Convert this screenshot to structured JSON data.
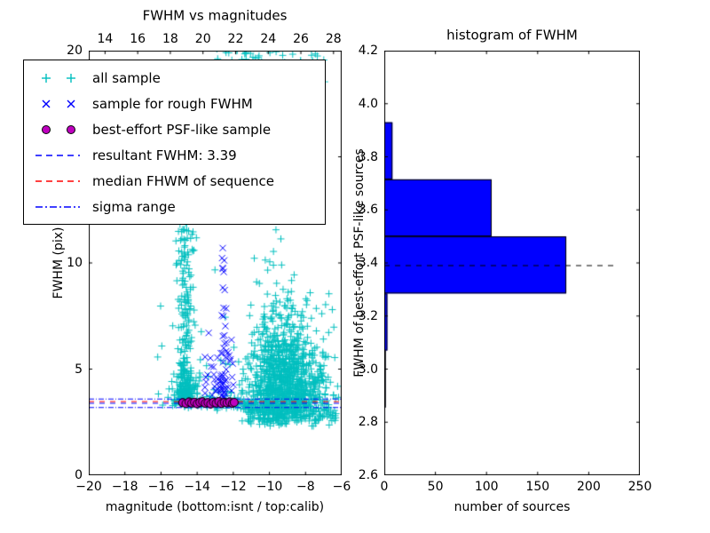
{
  "figure": {
    "background": "#ffffff"
  },
  "chart_data": [
    {
      "type": "scatter",
      "title": "FWHM vs magnitudes",
      "xlabel": "magnitude (bottom:isnt / top:calib)",
      "ylabel": "FWHM (pix)",
      "xlim": [
        -20,
        -6
      ],
      "ylim": [
        0,
        20
      ],
      "top_axis_xlim": [
        13,
        28.5
      ],
      "xtick_values_bottom": [
        -20,
        -18,
        -16,
        -14,
        -12,
        -10,
        -8,
        -6
      ],
      "xtick_labels_bottom": [
        "−20",
        "−18",
        "−16",
        "−14",
        "−12",
        "−10",
        "−8",
        "−6"
      ],
      "xtick_values_top": [
        14,
        16,
        18,
        20,
        22,
        24,
        26,
        28
      ],
      "xtick_labels_top": [
        "14",
        "16",
        "18",
        "20",
        "22",
        "24",
        "26",
        "28"
      ],
      "ytick_values": [
        0,
        5,
        10,
        15,
        20
      ],
      "ytick_labels": [
        "0",
        "5",
        "10",
        "15",
        "20"
      ],
      "legend": [
        {
          "label": "all sample",
          "marker": "plus",
          "color": "#00bfbf"
        },
        {
          "label": "sample for rough FWHM",
          "marker": "x",
          "color": "#0000ff"
        },
        {
          "label": "best-effort PSF-like sample",
          "marker": "circle",
          "color": "#bf00bf"
        },
        {
          "label": "resultant FWHM: 3.39",
          "marker": "dashed-line",
          "color": "#0000ff"
        },
        {
          "label": "median FHWM of sequence",
          "marker": "dashed-line",
          "color": "#ff0000"
        },
        {
          "label": "sigma range",
          "marker": "dashdot-line",
          "color": "#0000ff"
        }
      ],
      "hlines": [
        {
          "name": "sigma range upper",
          "y": 3.59,
          "style": "dashdot",
          "color": "#0000ff"
        },
        {
          "name": "median FHWM of sequence",
          "y": 3.47,
          "style": "dashed",
          "color": "#ff0000"
        },
        {
          "name": "resultant FWHM",
          "y": 3.39,
          "style": "dashed",
          "color": "#0000ff"
        },
        {
          "name": "sigma range lower",
          "y": 3.19,
          "style": "dashdot",
          "color": "#0000ff"
        }
      ],
      "seed": 42,
      "series": [
        {
          "name": "all sample",
          "marker": "plus",
          "color": "#00bfbf",
          "clusters": [
            {
              "n": 1050,
              "x": {
                "dist": "gauss",
                "mu": -9.2,
                "sd": 1.05,
                "min": -11.7,
                "max": -6.05
              },
              "y": {
                "dist": "lognorm",
                "mu": 1.48,
                "sd": 0.3,
                "min": 2.4,
                "max": 12.5
              }
            },
            {
              "n": 220,
              "x": {
                "dist": "gauss",
                "mu": -14.65,
                "sd": 0.22,
                "min": -15.3,
                "max": -14.0
              },
              "y": {
                "dist": "pow",
                "min": 3.35,
                "range": 8.6,
                "exp": 1.8
              }
            },
            {
              "n": 110,
              "x": {
                "dist": "gauss",
                "mu": -14.6,
                "sd": 0.33,
                "min": -15.5,
                "max": -13.8
              },
              "y": {
                "dist": "gauss",
                "mu": 4.0,
                "sd": 0.5,
                "min": 3.2,
                "max": 6.0
              }
            },
            {
              "n": 120,
              "x": {
                "dist": "uniform",
                "min": -13.0,
                "max": -6.8
              },
              "y": {
                "dist": "uniform",
                "min": 18.3,
                "max": 20.6
              }
            },
            {
              "n": 60,
              "x": {
                "dist": "uniform",
                "min": -12.5,
                "max": -7.0
              },
              "y": {
                "dist": "uniform",
                "min": 12.0,
                "max": 18.3
              }
            },
            {
              "n": 200,
              "x": {
                "dist": "uniform",
                "min": -11.4,
                "max": -6.3
              },
              "y": {
                "dist": "gauss",
                "mu": 3.05,
                "sd": 0.35,
                "min": 2.3,
                "max": 3.8
              }
            },
            {
              "n": 90,
              "x": {
                "dist": "uniform",
                "min": -15.4,
                "max": -11.5
              },
              "y": {
                "dist": "gauss",
                "mu": 3.45,
                "sd": 0.22,
                "min": 3.0,
                "max": 4.2
              }
            },
            {
              "n": 70,
              "x": {
                "dist": "uniform",
                "min": -16.3,
                "max": -6.2
              },
              "y": {
                "dist": "lognorm",
                "mu": 1.8,
                "sd": 0.45,
                "min": 3.0,
                "max": 16.0
              }
            }
          ]
        },
        {
          "name": "sample for rough FWHM",
          "marker": "x",
          "color": "#0000ff",
          "clusters": [
            {
              "n": 50,
              "x": {
                "dist": "gauss",
                "mu": -12.55,
                "sd": 0.1,
                "min": -12.9,
                "max": -12.2
              },
              "y": {
                "dist": "pow",
                "min": 3.4,
                "range": 8.4,
                "exp": 2.0
              }
            },
            {
              "n": 40,
              "x": {
                "dist": "uniform",
                "min": -13.6,
                "max": -11.9
              },
              "y": {
                "dist": "lognorm",
                "mu": 1.55,
                "sd": 0.25,
                "min": 3.3,
                "max": 7.5
              }
            }
          ]
        },
        {
          "name": "best-effort PSF-like sample",
          "marker": "circle",
          "color": "#bf00bf",
          "edge_color": "#000000",
          "points": [
            [
              -14.8,
              3.42
            ],
            [
              -14.62,
              3.38
            ],
            [
              -14.45,
              3.45
            ],
            [
              -14.3,
              3.4
            ],
            [
              -14.15,
              3.44
            ],
            [
              -14.0,
              3.37
            ],
            [
              -13.85,
              3.43
            ],
            [
              -13.7,
              3.46
            ],
            [
              -13.55,
              3.39
            ],
            [
              -13.4,
              3.42
            ],
            [
              -13.25,
              3.36
            ],
            [
              -13.1,
              3.44
            ],
            [
              -12.95,
              3.4
            ],
            [
              -12.8,
              3.47
            ],
            [
              -12.65,
              3.38
            ],
            [
              -12.5,
              3.43
            ],
            [
              -12.35,
              3.41
            ],
            [
              -12.2,
              3.45
            ],
            [
              -12.05,
              3.39
            ],
            [
              -11.95,
              3.43
            ]
          ]
        }
      ]
    },
    {
      "type": "bar",
      "orientation": "horizontal",
      "title": "histogram of FWHM",
      "xlabel": "number of sources",
      "ylabel": "FWHM of best-effort PSF-like sources",
      "xlim": [
        0,
        250
      ],
      "ylim": [
        2.6,
        4.2
      ],
      "xtick_values": [
        0,
        50,
        100,
        150,
        200,
        250
      ],
      "xtick_labels": [
        "0",
        "50",
        "100",
        "150",
        "200",
        "250"
      ],
      "ytick_values": [
        2.6,
        2.8,
        3.0,
        3.2,
        3.4,
        3.6,
        3.8,
        4.0,
        4.2
      ],
      "ytick_labels": [
        "2.6",
        "2.8",
        "3.0",
        "3.2",
        "3.4",
        "3.6",
        "3.8",
        "4.0",
        "4.2"
      ],
      "bin_edges": [
        2.855,
        3.07,
        3.285,
        3.5,
        3.715,
        3.93
      ],
      "counts": [
        1,
        3,
        178,
        105,
        8
      ],
      "bar_color": "#0000ff",
      "bar_edge_color": "#000000",
      "median_line": {
        "y": 3.39,
        "style": "dashed",
        "color": "#000000",
        "xmax_frac": 0.9
      }
    }
  ]
}
